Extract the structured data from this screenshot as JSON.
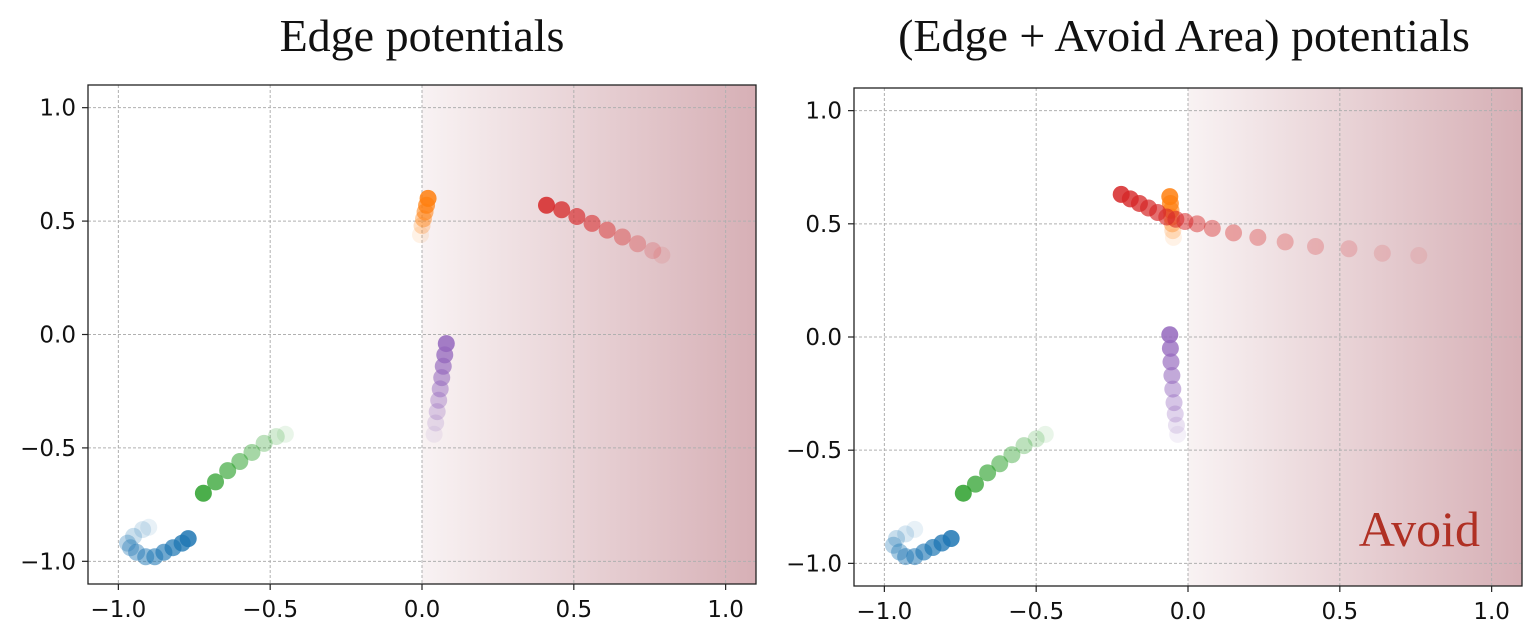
{
  "colors": {
    "blue": "#1f77b4",
    "orange": "#ff7f0e",
    "green": "#2ca02c",
    "red": "#d62728",
    "purple": "#9467bd",
    "avoid_shade": "#c9959d",
    "avoid_text": "#b03024",
    "grid": "#b0b0b0"
  },
  "chart_data": [
    {
      "type": "scatter",
      "title": "Edge potentials",
      "xlabel": "",
      "ylabel": "",
      "xlim": [
        -1.1,
        1.1
      ],
      "ylim": [
        -1.1,
        1.1
      ],
      "xticks": [
        "−1.0",
        "−0.5",
        "0.0",
        "0.5",
        "1.0"
      ],
      "yticks": [
        "1.0",
        "0.5",
        "0.0",
        "−0.5",
        "−1.0"
      ],
      "grid": true,
      "shaded_region": {
        "x_from": 0.0,
        "x_to": 1.1,
        "gradient": "increasing-right"
      },
      "series": [
        {
          "color_key": "blue",
          "x": [
            -0.77,
            -0.79,
            -0.82,
            -0.85,
            -0.88,
            -0.91,
            -0.94,
            -0.96,
            -0.97,
            -0.95,
            -0.92,
            -0.9
          ],
          "y": [
            -0.9,
            -0.92,
            -0.94,
            -0.96,
            -0.98,
            -0.98,
            -0.96,
            -0.94,
            -0.92,
            -0.89,
            -0.86,
            -0.85
          ]
        },
        {
          "color_key": "green",
          "x": [
            -0.72,
            -0.68,
            -0.64,
            -0.6,
            -0.56,
            -0.52,
            -0.48,
            -0.45
          ],
          "y": [
            -0.7,
            -0.65,
            -0.6,
            -0.56,
            -0.52,
            -0.48,
            -0.45,
            -0.44
          ]
        },
        {
          "color_key": "orange",
          "x": [
            0.02,
            0.015,
            0.01,
            0.005,
            0.0,
            -0.005
          ],
          "y": [
            0.6,
            0.57,
            0.54,
            0.51,
            0.48,
            0.44
          ]
        },
        {
          "color_key": "red",
          "x": [
            0.41,
            0.46,
            0.51,
            0.56,
            0.61,
            0.66,
            0.71,
            0.76,
            0.79
          ],
          "y": [
            0.57,
            0.55,
            0.52,
            0.49,
            0.46,
            0.43,
            0.4,
            0.37,
            0.35
          ]
        },
        {
          "color_key": "purple",
          "x": [
            0.08,
            0.075,
            0.07,
            0.065,
            0.06,
            0.055,
            0.05,
            0.045,
            0.04
          ],
          "y": [
            -0.04,
            -0.09,
            -0.14,
            -0.19,
            -0.24,
            -0.29,
            -0.34,
            -0.39,
            -0.44
          ]
        }
      ],
      "annotation": ""
    },
    {
      "type": "scatter",
      "title": "(Edge + Avoid Area) potentials",
      "xlabel": "",
      "ylabel": "",
      "xlim": [
        -1.1,
        1.1
      ],
      "ylim": [
        -1.1,
        1.1
      ],
      "xticks": [
        "−1.0",
        "−0.5",
        "0.0",
        "0.5",
        "1.0"
      ],
      "yticks": [
        "1.0",
        "0.5",
        "0.0",
        "−0.5",
        "−1.0"
      ],
      "grid": true,
      "shaded_region": {
        "x_from": 0.0,
        "x_to": 1.1,
        "gradient": "increasing-right"
      },
      "series": [
        {
          "color_key": "blue",
          "x": [
            -0.78,
            -0.81,
            -0.84,
            -0.87,
            -0.9,
            -0.93,
            -0.95,
            -0.97,
            -0.96,
            -0.93,
            -0.9
          ],
          "y": [
            -0.89,
            -0.91,
            -0.93,
            -0.95,
            -0.97,
            -0.97,
            -0.95,
            -0.92,
            -0.89,
            -0.87,
            -0.85
          ]
        },
        {
          "color_key": "green",
          "x": [
            -0.74,
            -0.7,
            -0.66,
            -0.62,
            -0.58,
            -0.54,
            -0.5,
            -0.47
          ],
          "y": [
            -0.69,
            -0.65,
            -0.6,
            -0.56,
            -0.52,
            -0.48,
            -0.45,
            -0.43
          ]
        },
        {
          "color_key": "orange",
          "x": [
            -0.06,
            -0.058,
            -0.056,
            -0.054,
            -0.052,
            -0.05,
            -0.048
          ],
          "y": [
            0.62,
            0.59,
            0.56,
            0.53,
            0.5,
            0.47,
            0.44
          ]
        },
        {
          "color_key": "red",
          "x": [
            -0.22,
            -0.19,
            -0.16,
            -0.13,
            -0.1,
            -0.07,
            -0.04,
            -0.01,
            0.03,
            0.08,
            0.15,
            0.23,
            0.32,
            0.42,
            0.53,
            0.64,
            0.76
          ],
          "y": [
            0.63,
            0.61,
            0.59,
            0.57,
            0.55,
            0.53,
            0.52,
            0.51,
            0.5,
            0.48,
            0.46,
            0.44,
            0.42,
            0.4,
            0.39,
            0.37,
            0.36
          ]
        },
        {
          "color_key": "purple",
          "x": [
            -0.06,
            -0.058,
            -0.056,
            -0.053,
            -0.05,
            -0.046,
            -0.042,
            -0.038,
            -0.034
          ],
          "y": [
            0.01,
            -0.05,
            -0.11,
            -0.17,
            -0.23,
            -0.29,
            -0.34,
            -0.39,
            -0.43
          ]
        }
      ],
      "annotation": "Avoid"
    }
  ]
}
